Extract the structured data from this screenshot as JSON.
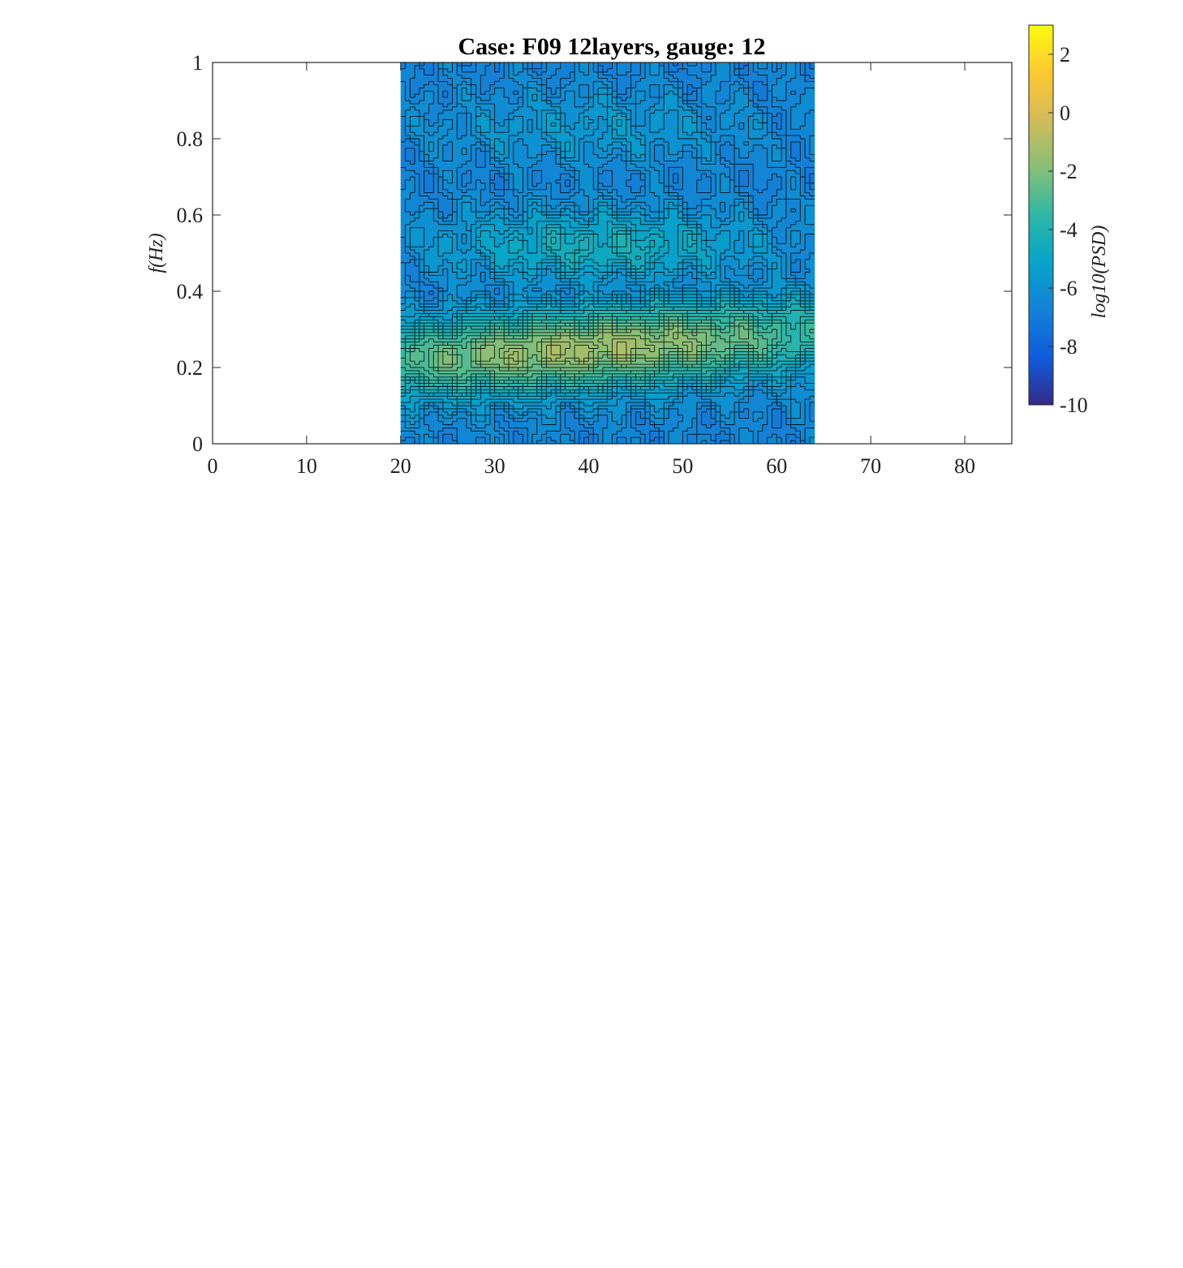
{
  "chart_data": {
    "type": "heatmap",
    "subtype": "filled-contour",
    "title": "Case: F09 12layers, gauge: 12",
    "xlabel": "",
    "ylabel": "f(Hz)",
    "xlim": [
      0,
      85
    ],
    "ylim": [
      0,
      1
    ],
    "x_ticks": [
      0,
      10,
      20,
      30,
      40,
      50,
      60,
      70,
      80
    ],
    "y_ticks": [
      0,
      0.2,
      0.4,
      0.6,
      0.8,
      1
    ],
    "x_tick_labels": [
      "0",
      "10",
      "20",
      "30",
      "40",
      "50",
      "60",
      "70",
      "80"
    ],
    "y_tick_labels": [
      "0",
      "0.2",
      "0.4",
      "0.6",
      "0.8",
      "1"
    ],
    "data_x_range": [
      20,
      64
    ],
    "data_y_range": [
      0,
      1
    ],
    "colorbar": {
      "label": "log10(PSD)",
      "colormap": "parula",
      "range": [
        -10,
        3
      ],
      "ticks": [
        -10,
        -8,
        -6,
        -4,
        -2,
        0,
        2
      ],
      "tick_labels": [
        "-10",
        "-8",
        "-6",
        "-4",
        "-2",
        "0",
        "2"
      ]
    },
    "features": [
      {
        "feature": "primary peak band",
        "t_center": 40,
        "f_center": 0.25,
        "log10_psd_peak": -1.2
      },
      {
        "feature": "second harmonic band",
        "t_center": 41,
        "f_center": 0.52,
        "log10_psd_peak": -4.3
      },
      {
        "feature": "third harmonic band",
        "t_center": 40,
        "f_center": 0.83,
        "log10_psd_peak": -5.5
      },
      {
        "feature": "background",
        "log10_psd": -6.5
      }
    ],
    "grid": false,
    "legend": "none"
  },
  "colors": {
    "parula": [
      "#352a87",
      "#0f5cdd",
      "#1481d6",
      "#06a4ca",
      "#2eb7a4",
      "#87bf77",
      "#d1bb59",
      "#fec832",
      "#f9fb0e"
    ],
    "contour_line": "#000000",
    "axes": "#262626"
  }
}
